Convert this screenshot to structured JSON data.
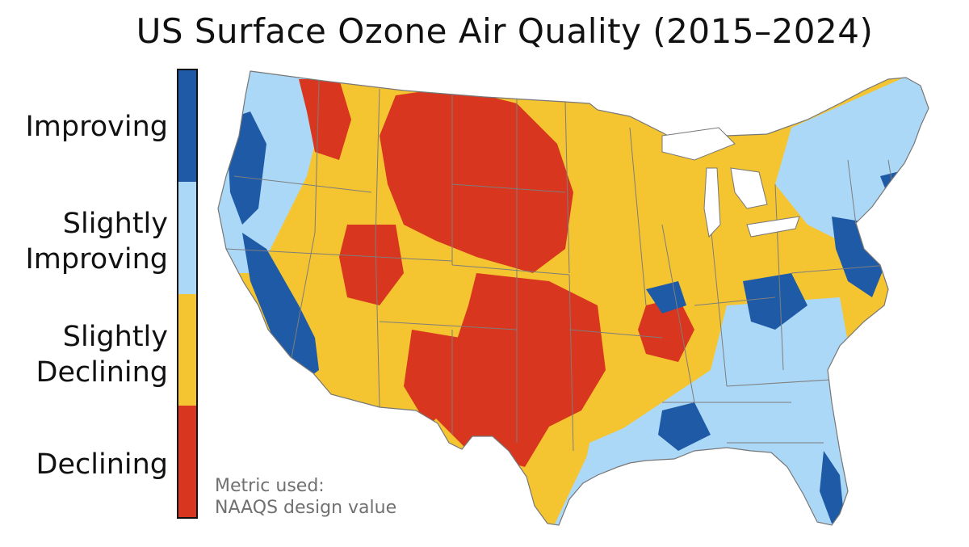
{
  "title": "US Surface Ozone Air Quality (2015–2024)",
  "legend": {
    "items": [
      {
        "label": "Improving",
        "color": "#1f5aa6"
      },
      {
        "label": "Slightly Improving",
        "color": "#acd8f7"
      },
      {
        "label": "Slightly Declining",
        "color": "#f4c531"
      },
      {
        "label": "Declining",
        "color": "#d8361e"
      }
    ]
  },
  "note": {
    "line1": "Metric used:",
    "line2": "NAAQS design value"
  },
  "map": {
    "region": "contiguous-united-states",
    "state_border_color": "#7d7d7d",
    "predominant_categories": {
      "northern-plains": "Declining",
      "southwest-texas": "Declining",
      "california-coast": "Improving",
      "mid-atlantic": "Improving",
      "southeast": "Slightly Improving",
      "midwest": "Slightly Declining"
    }
  }
}
